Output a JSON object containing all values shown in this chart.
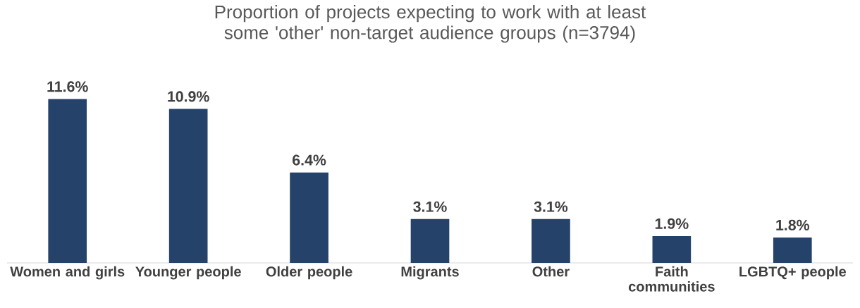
{
  "chart_data": {
    "type": "bar",
    "title": "Proportion of projects expecting to work with at least some 'other' non-target audience groups (n=3794)",
    "categories": [
      "Women and girls",
      "Younger people",
      "Older people",
      "Migrants",
      "Other",
      "Faith communities",
      "LGBTQ+ people"
    ],
    "values": [
      11.6,
      10.9,
      6.4,
      3.1,
      3.1,
      1.9,
      1.8
    ],
    "value_labels": [
      "11.6%",
      "10.9%",
      "6.4%",
      "3.1%",
      "3.1%",
      "1.9%",
      "1.8%"
    ],
    "color": "#24426a"
  }
}
